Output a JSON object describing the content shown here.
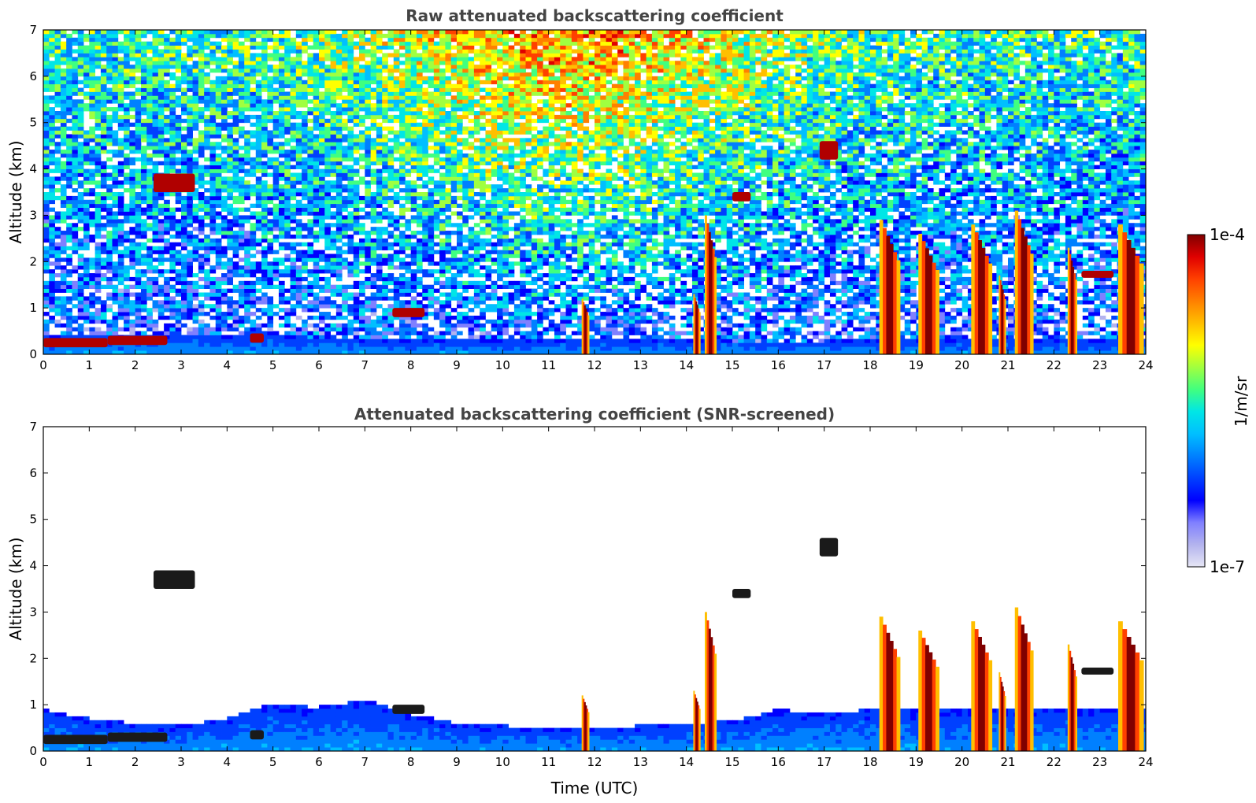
{
  "chart_data": [
    {
      "type": "heatmap",
      "title": "Raw attenuated backscattering coefficient",
      "xlabel": "",
      "ylabel": "Altitude (km)",
      "xlim": [
        0,
        24
      ],
      "ylim": [
        0,
        7
      ],
      "x_ticks": [
        "0",
        "1",
        "2",
        "3",
        "4",
        "5",
        "6",
        "7",
        "8",
        "9",
        "10",
        "11",
        "12",
        "13",
        "14",
        "15",
        "16",
        "17",
        "18",
        "19",
        "20",
        "21",
        "22",
        "23",
        "24"
      ],
      "y_ticks": [
        "0",
        "1",
        "2",
        "3",
        "4",
        "5",
        "6",
        "7"
      ],
      "screened": false,
      "features": {
        "aerosol_layer_top_km": [
          [
            0,
            0.42
          ],
          [
            2,
            0.45
          ],
          [
            4,
            0.42
          ],
          [
            4.8,
            0.5
          ],
          [
            6,
            0.35
          ],
          [
            8,
            0.3
          ],
          [
            10,
            0.3
          ],
          [
            12,
            0.3
          ],
          [
            14,
            0.3
          ],
          [
            16,
            0.28
          ],
          [
            18,
            0.3
          ],
          [
            20,
            0.3
          ],
          [
            22,
            0.3
          ],
          [
            24,
            0.3
          ]
        ],
        "cloud_patches": [
          {
            "t0": 0.0,
            "t1": 1.4,
            "z0": 0.15,
            "z1": 0.35,
            "level": "high"
          },
          {
            "t0": 1.4,
            "t1": 2.7,
            "z0": 0.2,
            "z1": 0.4,
            "level": "high"
          },
          {
            "t0": 2.4,
            "t1": 3.3,
            "z0": 3.5,
            "z1": 3.9,
            "level": "high"
          },
          {
            "t0": 4.5,
            "t1": 4.8,
            "z0": 0.25,
            "z1": 0.45,
            "level": "high"
          },
          {
            "t0": 7.6,
            "t1": 8.3,
            "z0": 0.8,
            "z1": 1.0,
            "level": "high"
          },
          {
            "t0": 15.0,
            "t1": 15.4,
            "z0": 3.3,
            "z1": 3.5,
            "level": "high"
          },
          {
            "t0": 16.9,
            "t1": 17.3,
            "z0": 4.2,
            "z1": 4.6,
            "level": "high"
          },
          {
            "t0": 22.6,
            "t1": 23.3,
            "z0": 1.65,
            "z1": 1.8,
            "level": "high"
          }
        ],
        "precipitation_columns": [
          {
            "t0": 11.72,
            "t1": 11.88,
            "z_top": 1.2
          },
          {
            "t0": 14.15,
            "t1": 14.3,
            "z_top": 1.3
          },
          {
            "t0": 14.4,
            "t1": 14.65,
            "z_top": 3.0
          },
          {
            "t0": 18.2,
            "t1": 18.65,
            "z_top": 2.9
          },
          {
            "t0": 19.05,
            "t1": 19.5,
            "z_top": 2.6
          },
          {
            "t0": 20.2,
            "t1": 20.65,
            "z_top": 2.8
          },
          {
            "t0": 20.8,
            "t1": 20.95,
            "z_top": 1.7
          },
          {
            "t0": 21.15,
            "t1": 21.55,
            "z_top": 3.1
          },
          {
            "t0": 22.3,
            "t1": 22.5,
            "z_top": 2.3
          },
          {
            "t0": 23.4,
            "t1": 23.95,
            "z_top": 2.8
          }
        ]
      }
    },
    {
      "type": "heatmap",
      "title": "Attenuated backscattering coefficient (SNR-screened)",
      "xlabel": "Time (UTC)",
      "ylabel": "Altitude (km)",
      "xlim": [
        0,
        24
      ],
      "ylim": [
        0,
        7
      ],
      "x_ticks": [
        "0",
        "1",
        "2",
        "3",
        "4",
        "5",
        "6",
        "7",
        "8",
        "9",
        "10",
        "11",
        "12",
        "13",
        "14",
        "15",
        "16",
        "17",
        "18",
        "19",
        "20",
        "21",
        "22",
        "23",
        "24"
      ],
      "y_ticks": [
        "0",
        "1",
        "2",
        "3",
        "4",
        "5",
        "6",
        "7"
      ],
      "screened": true,
      "features": {
        "aerosol_layer_top_km": [
          [
            0,
            0.9
          ],
          [
            1,
            0.7
          ],
          [
            2,
            0.6
          ],
          [
            3,
            0.55
          ],
          [
            4,
            0.7
          ],
          [
            4.8,
            1.0
          ],
          [
            6,
            0.95
          ],
          [
            7,
            1.1
          ],
          [
            8,
            0.8
          ],
          [
            9,
            0.6
          ],
          [
            10,
            0.55
          ],
          [
            11,
            0.5
          ],
          [
            12,
            0.5
          ],
          [
            13,
            0.55
          ],
          [
            14,
            0.6
          ],
          [
            15,
            0.65
          ],
          [
            16,
            0.9
          ],
          [
            17,
            0.8
          ],
          [
            18,
            0.9
          ],
          [
            19,
            0.9
          ],
          [
            20,
            0.9
          ],
          [
            21,
            0.9
          ],
          [
            22,
            0.9
          ],
          [
            23,
            0.9
          ],
          [
            24,
            0.9
          ]
        ],
        "cloud_patches": [
          {
            "t0": 0.0,
            "t1": 1.4,
            "z0": 0.15,
            "z1": 0.35,
            "level": "high"
          },
          {
            "t0": 1.4,
            "t1": 2.7,
            "z0": 0.2,
            "z1": 0.4,
            "level": "high"
          },
          {
            "t0": 2.4,
            "t1": 3.3,
            "z0": 3.5,
            "z1": 3.9,
            "level": "high"
          },
          {
            "t0": 4.5,
            "t1": 4.8,
            "z0": 0.25,
            "z1": 0.45,
            "level": "high"
          },
          {
            "t0": 7.6,
            "t1": 8.3,
            "z0": 0.8,
            "z1": 1.0,
            "level": "high"
          },
          {
            "t0": 15.0,
            "t1": 15.4,
            "z0": 3.3,
            "z1": 3.5,
            "level": "high"
          },
          {
            "t0": 16.9,
            "t1": 17.3,
            "z0": 4.2,
            "z1": 4.6,
            "level": "high"
          },
          {
            "t0": 22.6,
            "t1": 23.3,
            "z0": 1.65,
            "z1": 1.8,
            "level": "high"
          }
        ],
        "precipitation_columns": [
          {
            "t0": 11.72,
            "t1": 11.88,
            "z_top": 1.2
          },
          {
            "t0": 14.15,
            "t1": 14.3,
            "z_top": 1.3
          },
          {
            "t0": 14.4,
            "t1": 14.65,
            "z_top": 3.0
          },
          {
            "t0": 18.2,
            "t1": 18.65,
            "z_top": 2.9
          },
          {
            "t0": 19.05,
            "t1": 19.5,
            "z_top": 2.6
          },
          {
            "t0": 20.2,
            "t1": 20.65,
            "z_top": 2.8
          },
          {
            "t0": 20.8,
            "t1": 20.95,
            "z_top": 1.7
          },
          {
            "t0": 21.15,
            "t1": 21.55,
            "z_top": 3.1
          },
          {
            "t0": 22.3,
            "t1": 22.5,
            "z_top": 2.3
          },
          {
            "t0": 23.4,
            "t1": 23.95,
            "z_top": 2.8
          }
        ]
      }
    }
  ],
  "colorbar": {
    "label": "1/m/sr",
    "max_label": "1e-4",
    "min_label": "1e-7",
    "scale": "log",
    "range": [
      1e-07,
      0.0001
    ],
    "colors": [
      "#e6e6f5",
      "#b3b3ee",
      "#8080ff",
      "#0000ff",
      "#0040ff",
      "#0080ff",
      "#00bfff",
      "#00e6e6",
      "#40ff80",
      "#a0ff40",
      "#ffff00",
      "#ffbf00",
      "#ff8000",
      "#ff4000",
      "#e00000",
      "#800000"
    ]
  }
}
